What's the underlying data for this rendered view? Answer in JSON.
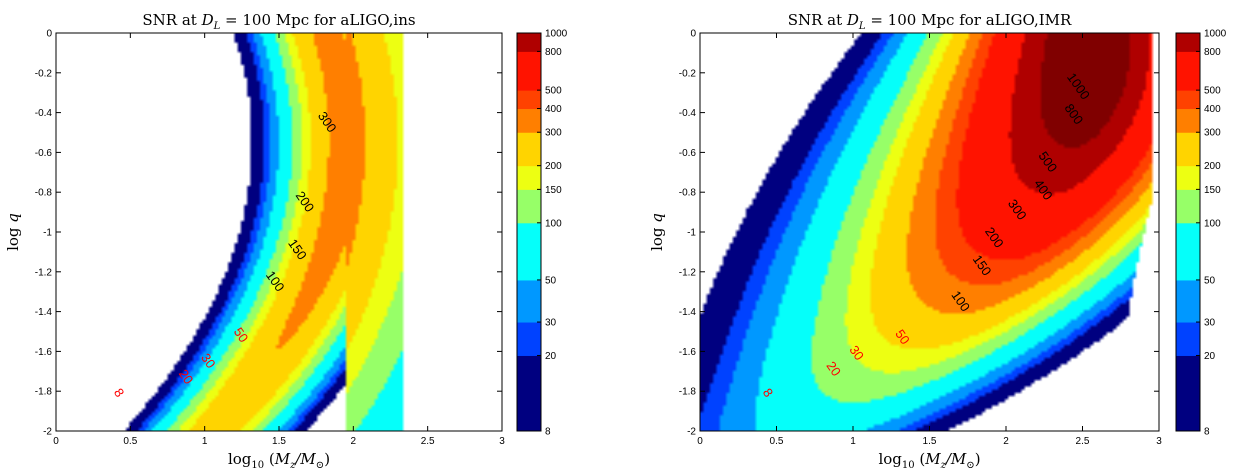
{
  "chart_data": [
    {
      "type": "heatmap",
      "subtype": "filled-contour",
      "title": "SNR at D_L = 100 Mpc for aLIGO,ins",
      "title_parts": {
        "prefix": "SNR at ",
        "var": "D",
        "sub": "L",
        "suffix": " = 100 Mpc for aLIGO,ins"
      },
      "xlabel": "log10 (Mz/M⊙)",
      "ylabel": "log q",
      "xlim": [
        0,
        3
      ],
      "ylim": [
        -2,
        0
      ],
      "xticks": [
        "0",
        "0.5",
        "1",
        "1.5",
        "2",
        "2.5",
        "3"
      ],
      "yticks": [
        "0",
        "-0.2",
        "-0.4",
        "-0.6",
        "-0.8",
        "-1",
        "-1.2",
        "-1.4",
        "-1.6",
        "-1.8",
        "-2"
      ],
      "levels": [
        8,
        20,
        30,
        50,
        100,
        150,
        200,
        300
      ],
      "peak": {
        "x": 1.95,
        "y": -0.55
      },
      "cutoff_x": 2.33,
      "contour_labels": [
        {
          "text": "8",
          "x": 0.4,
          "y": -1.82,
          "color": "#ff0000"
        },
        {
          "text": "20",
          "x": 0.85,
          "y": -1.74,
          "color": "#ff0000"
        },
        {
          "text": "30",
          "x": 1.0,
          "y": -1.66,
          "color": "#ff0000"
        },
        {
          "text": "50",
          "x": 1.22,
          "y": -1.53,
          "color": "#ff0000"
        },
        {
          "text": "100",
          "x": 1.45,
          "y": -1.26,
          "color": "#000000"
        },
        {
          "text": "150",
          "x": 1.6,
          "y": -1.1,
          "color": "#000000"
        },
        {
          "text": "200",
          "x": 1.65,
          "y": -0.86,
          "color": "#000000"
        },
        {
          "text": "300",
          "x": 1.8,
          "y": -0.46,
          "color": "#000000"
        }
      ],
      "colorbar": {
        "scale": "log",
        "range": [
          8,
          1000
        ],
        "ticks": [
          "8",
          "20",
          "30",
          "50",
          "100",
          "150",
          "200",
          "300",
          "400",
          "500",
          "800",
          "1000"
        ]
      }
    },
    {
      "type": "heatmap",
      "subtype": "filled-contour",
      "title": "SNR at D_L = 100 Mpc for aLIGO,IMR",
      "title_parts": {
        "prefix": "SNR at ",
        "var": "D",
        "sub": "L",
        "suffix": " = 100 Mpc for aLIGO,IMR"
      },
      "xlabel": "log10 (Mz/M⊙)",
      "ylabel": "log q",
      "xlim": [
        0,
        3
      ],
      "ylim": [
        -2,
        0
      ],
      "xticks": [
        "0",
        "0.5",
        "1",
        "1.5",
        "2",
        "2.5",
        "3"
      ],
      "yticks": [
        "0",
        "-0.2",
        "-0.4",
        "-0.6",
        "-0.8",
        "-1",
        "-1.2",
        "-1.4",
        "-1.6",
        "-1.8",
        "-2"
      ],
      "levels": [
        8,
        20,
        30,
        50,
        100,
        150,
        200,
        300,
        400,
        500,
        800,
        1000
      ],
      "peak": {
        "x": 2.55,
        "y": -0.1
      },
      "cutoff_x": 2.95,
      "contour_labels": [
        {
          "text": "8",
          "x": 0.42,
          "y": -1.82,
          "color": "#ff0000"
        },
        {
          "text": "20",
          "x": 0.85,
          "y": -1.7,
          "color": "#ff0000"
        },
        {
          "text": "30",
          "x": 1.0,
          "y": -1.62,
          "color": "#ff0000"
        },
        {
          "text": "50",
          "x": 1.3,
          "y": -1.54,
          "color": "#ff0000"
        },
        {
          "text": "100",
          "x": 1.68,
          "y": -1.36,
          "color": "#000000"
        },
        {
          "text": "150",
          "x": 1.82,
          "y": -1.18,
          "color": "#000000"
        },
        {
          "text": "200",
          "x": 1.9,
          "y": -1.04,
          "color": "#000000"
        },
        {
          "text": "300",
          "x": 2.05,
          "y": -0.9,
          "color": "#000000"
        },
        {
          "text": "400",
          "x": 2.22,
          "y": -0.8,
          "color": "#000000"
        },
        {
          "text": "500",
          "x": 2.25,
          "y": -0.66,
          "color": "#000000"
        },
        {
          "text": "800",
          "x": 2.42,
          "y": -0.42,
          "color": "#000000"
        },
        {
          "text": "1000",
          "x": 2.45,
          "y": -0.28,
          "color": "#000000"
        }
      ],
      "colorbar": {
        "scale": "log",
        "range": [
          8,
          1000
        ],
        "ticks": [
          "8",
          "20",
          "30",
          "50",
          "100",
          "150",
          "200",
          "300",
          "400",
          "500",
          "800",
          "1000"
        ]
      }
    }
  ]
}
